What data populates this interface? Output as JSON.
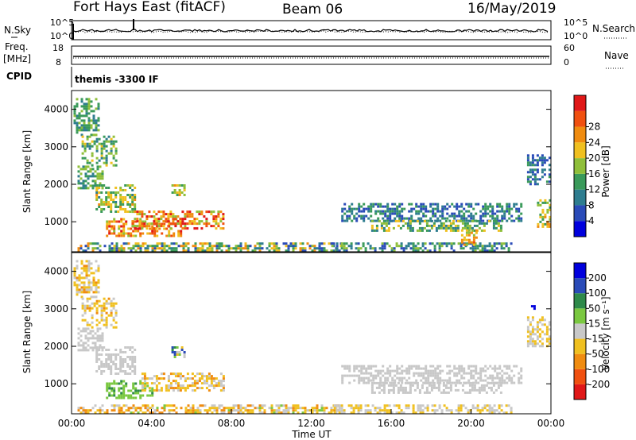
{
  "header": {
    "station": "Fort Hays East (fitACF)",
    "beam": "Beam 06",
    "date": "16/May/2019"
  },
  "top_panels": {
    "noise": {
      "left_label": "N.Sky",
      "right_label": "N.Search",
      "left_ticks": [
        "10^5",
        "10^0"
      ],
      "right_ticks": [
        "10^5",
        "10^0"
      ]
    },
    "freq": {
      "left_label_1": "Freq.",
      "left_label_2": "[MHz]",
      "right_label": "Nave",
      "left_ticks": [
        "18",
        "8"
      ],
      "right_ticks": [
        "60",
        "0"
      ]
    },
    "cpid": {
      "label": "CPID",
      "text": "themis -3300 IF"
    }
  },
  "colors": {
    "power": [
      "#0000dd",
      "#2a4bb8",
      "#2e7d8f",
      "#3a9a5a",
      "#8fbf3a",
      "#f0c020",
      "#f08c10",
      "#f05010",
      "#e01818"
    ],
    "velocity": [
      "#e01818",
      "#f05010",
      "#f08c10",
      "#f0c020",
      "#c8c8c8",
      "#7ac840",
      "#2e8a4a",
      "#2a4bb8",
      "#0000dd"
    ]
  },
  "chart_data": [
    {
      "type": "heatmap",
      "name": "power",
      "ylabel": "Slant Range [km]",
      "yticks": [
        1000,
        2000,
        3000,
        4000
      ],
      "ylim": [
        200,
        4500
      ],
      "xlim": [
        0,
        24
      ],
      "colorbar_label": "Power [dB]",
      "colorbar_ticks": [
        4,
        8,
        12,
        16,
        20,
        24,
        28
      ],
      "colorbar_range": [
        0,
        32
      ],
      "regions": [
        {
          "t0": 0.1,
          "t1": 1.4,
          "r0": 3300,
          "r1": 4300,
          "v0": 8,
          "v1": 16
        },
        {
          "t0": 0.5,
          "t1": 2.2,
          "r0": 2500,
          "r1": 3300,
          "v0": 8,
          "v1": 20
        },
        {
          "t0": 0.3,
          "t1": 1.5,
          "r0": 1900,
          "r1": 2500,
          "v0": 8,
          "v1": 18
        },
        {
          "t0": 1.2,
          "t1": 3.2,
          "r0": 1300,
          "r1": 2000,
          "v0": 10,
          "v1": 22
        },
        {
          "t0": 1.6,
          "t1": 5.5,
          "r0": 600,
          "r1": 1100,
          "v0": 16,
          "v1": 30
        },
        {
          "t0": 3.0,
          "t1": 7.6,
          "r0": 800,
          "r1": 1300,
          "v0": 16,
          "v1": 32
        },
        {
          "t0": 5.0,
          "t1": 5.6,
          "r0": 1700,
          "r1": 2000,
          "v0": 12,
          "v1": 24
        },
        {
          "t0": 0.3,
          "t1": 13.5,
          "r0": 250,
          "r1": 450,
          "v0": 4,
          "v1": 24
        },
        {
          "t0": 13.0,
          "t1": 22.0,
          "r0": 250,
          "r1": 450,
          "v0": 4,
          "v1": 16
        },
        {
          "t0": 13.5,
          "t1": 22.5,
          "r0": 1000,
          "r1": 1500,
          "v0": 4,
          "v1": 14
        },
        {
          "t0": 15.0,
          "t1": 21.5,
          "r0": 750,
          "r1": 1050,
          "v0": 8,
          "v1": 20
        },
        {
          "t0": 19.5,
          "t1": 20.3,
          "r0": 400,
          "r1": 800,
          "v0": 16,
          "v1": 26
        },
        {
          "t0": 22.8,
          "t1": 23.9,
          "r0": 2000,
          "r1": 2800,
          "v0": 4,
          "v1": 12
        },
        {
          "t0": 23.3,
          "t1": 23.9,
          "r0": 900,
          "r1": 1600,
          "v0": 12,
          "v1": 24
        }
      ]
    },
    {
      "type": "heatmap",
      "name": "velocity",
      "ylabel": "Slant Range [km]",
      "xlabel": "Time UT",
      "xticks": [
        "00:00",
        "04:00",
        "08:00",
        "12:00",
        "16:00",
        "20:00",
        "00:00"
      ],
      "yticks": [
        1000,
        2000,
        3000,
        4000
      ],
      "ylim": [
        200,
        4500
      ],
      "xlim": [
        0,
        24
      ],
      "colorbar_label": "Velocity [m s⁻¹]",
      "colorbar_ticks": [
        "-200",
        "-100",
        "-50",
        "-15",
        "15",
        "50",
        "100",
        "200"
      ],
      "regions": [
        {
          "t0": 0.1,
          "t1": 1.4,
          "r0": 3300,
          "r1": 4300,
          "v0": -60,
          "v1": 10
        },
        {
          "t0": 0.5,
          "t1": 2.2,
          "r0": 2500,
          "r1": 3300,
          "v0": -60,
          "v1": 10
        },
        {
          "t0": 0.3,
          "t1": 1.5,
          "r0": 1900,
          "r1": 2500,
          "v0": -10,
          "v1": 10
        },
        {
          "t0": 1.2,
          "t1": 3.2,
          "r0": 1300,
          "r1": 2000,
          "v0": -10,
          "v1": 10
        },
        {
          "t0": 1.6,
          "t1": 4.0,
          "r0": 600,
          "r1": 1100,
          "v0": 15,
          "v1": 60
        },
        {
          "t0": 3.5,
          "t1": 7.6,
          "r0": 800,
          "r1": 1300,
          "v0": -60,
          "v1": 10
        },
        {
          "t0": 5.0,
          "t1": 5.6,
          "r0": 1700,
          "r1": 2000,
          "v0": -120,
          "v1": 220
        },
        {
          "t0": 0.3,
          "t1": 13.5,
          "r0": 250,
          "r1": 450,
          "v0": -80,
          "v1": 20
        },
        {
          "t0": 13.0,
          "t1": 22.0,
          "r0": 250,
          "r1": 450,
          "v0": -40,
          "v1": 10
        },
        {
          "t0": 13.5,
          "t1": 22.5,
          "r0": 1000,
          "r1": 1500,
          "v0": -10,
          "v1": 10
        },
        {
          "t0": 15.0,
          "t1": 21.5,
          "r0": 750,
          "r1": 1050,
          "v0": -10,
          "v1": 10
        },
        {
          "t0": 22.8,
          "t1": 23.9,
          "r0": 2000,
          "r1": 2800,
          "v0": -40,
          "v1": 10
        },
        {
          "t0": 23.0,
          "t1": 23.3,
          "r0": 3000,
          "r1": 3100,
          "v0": 200,
          "v1": 240
        }
      ]
    }
  ]
}
